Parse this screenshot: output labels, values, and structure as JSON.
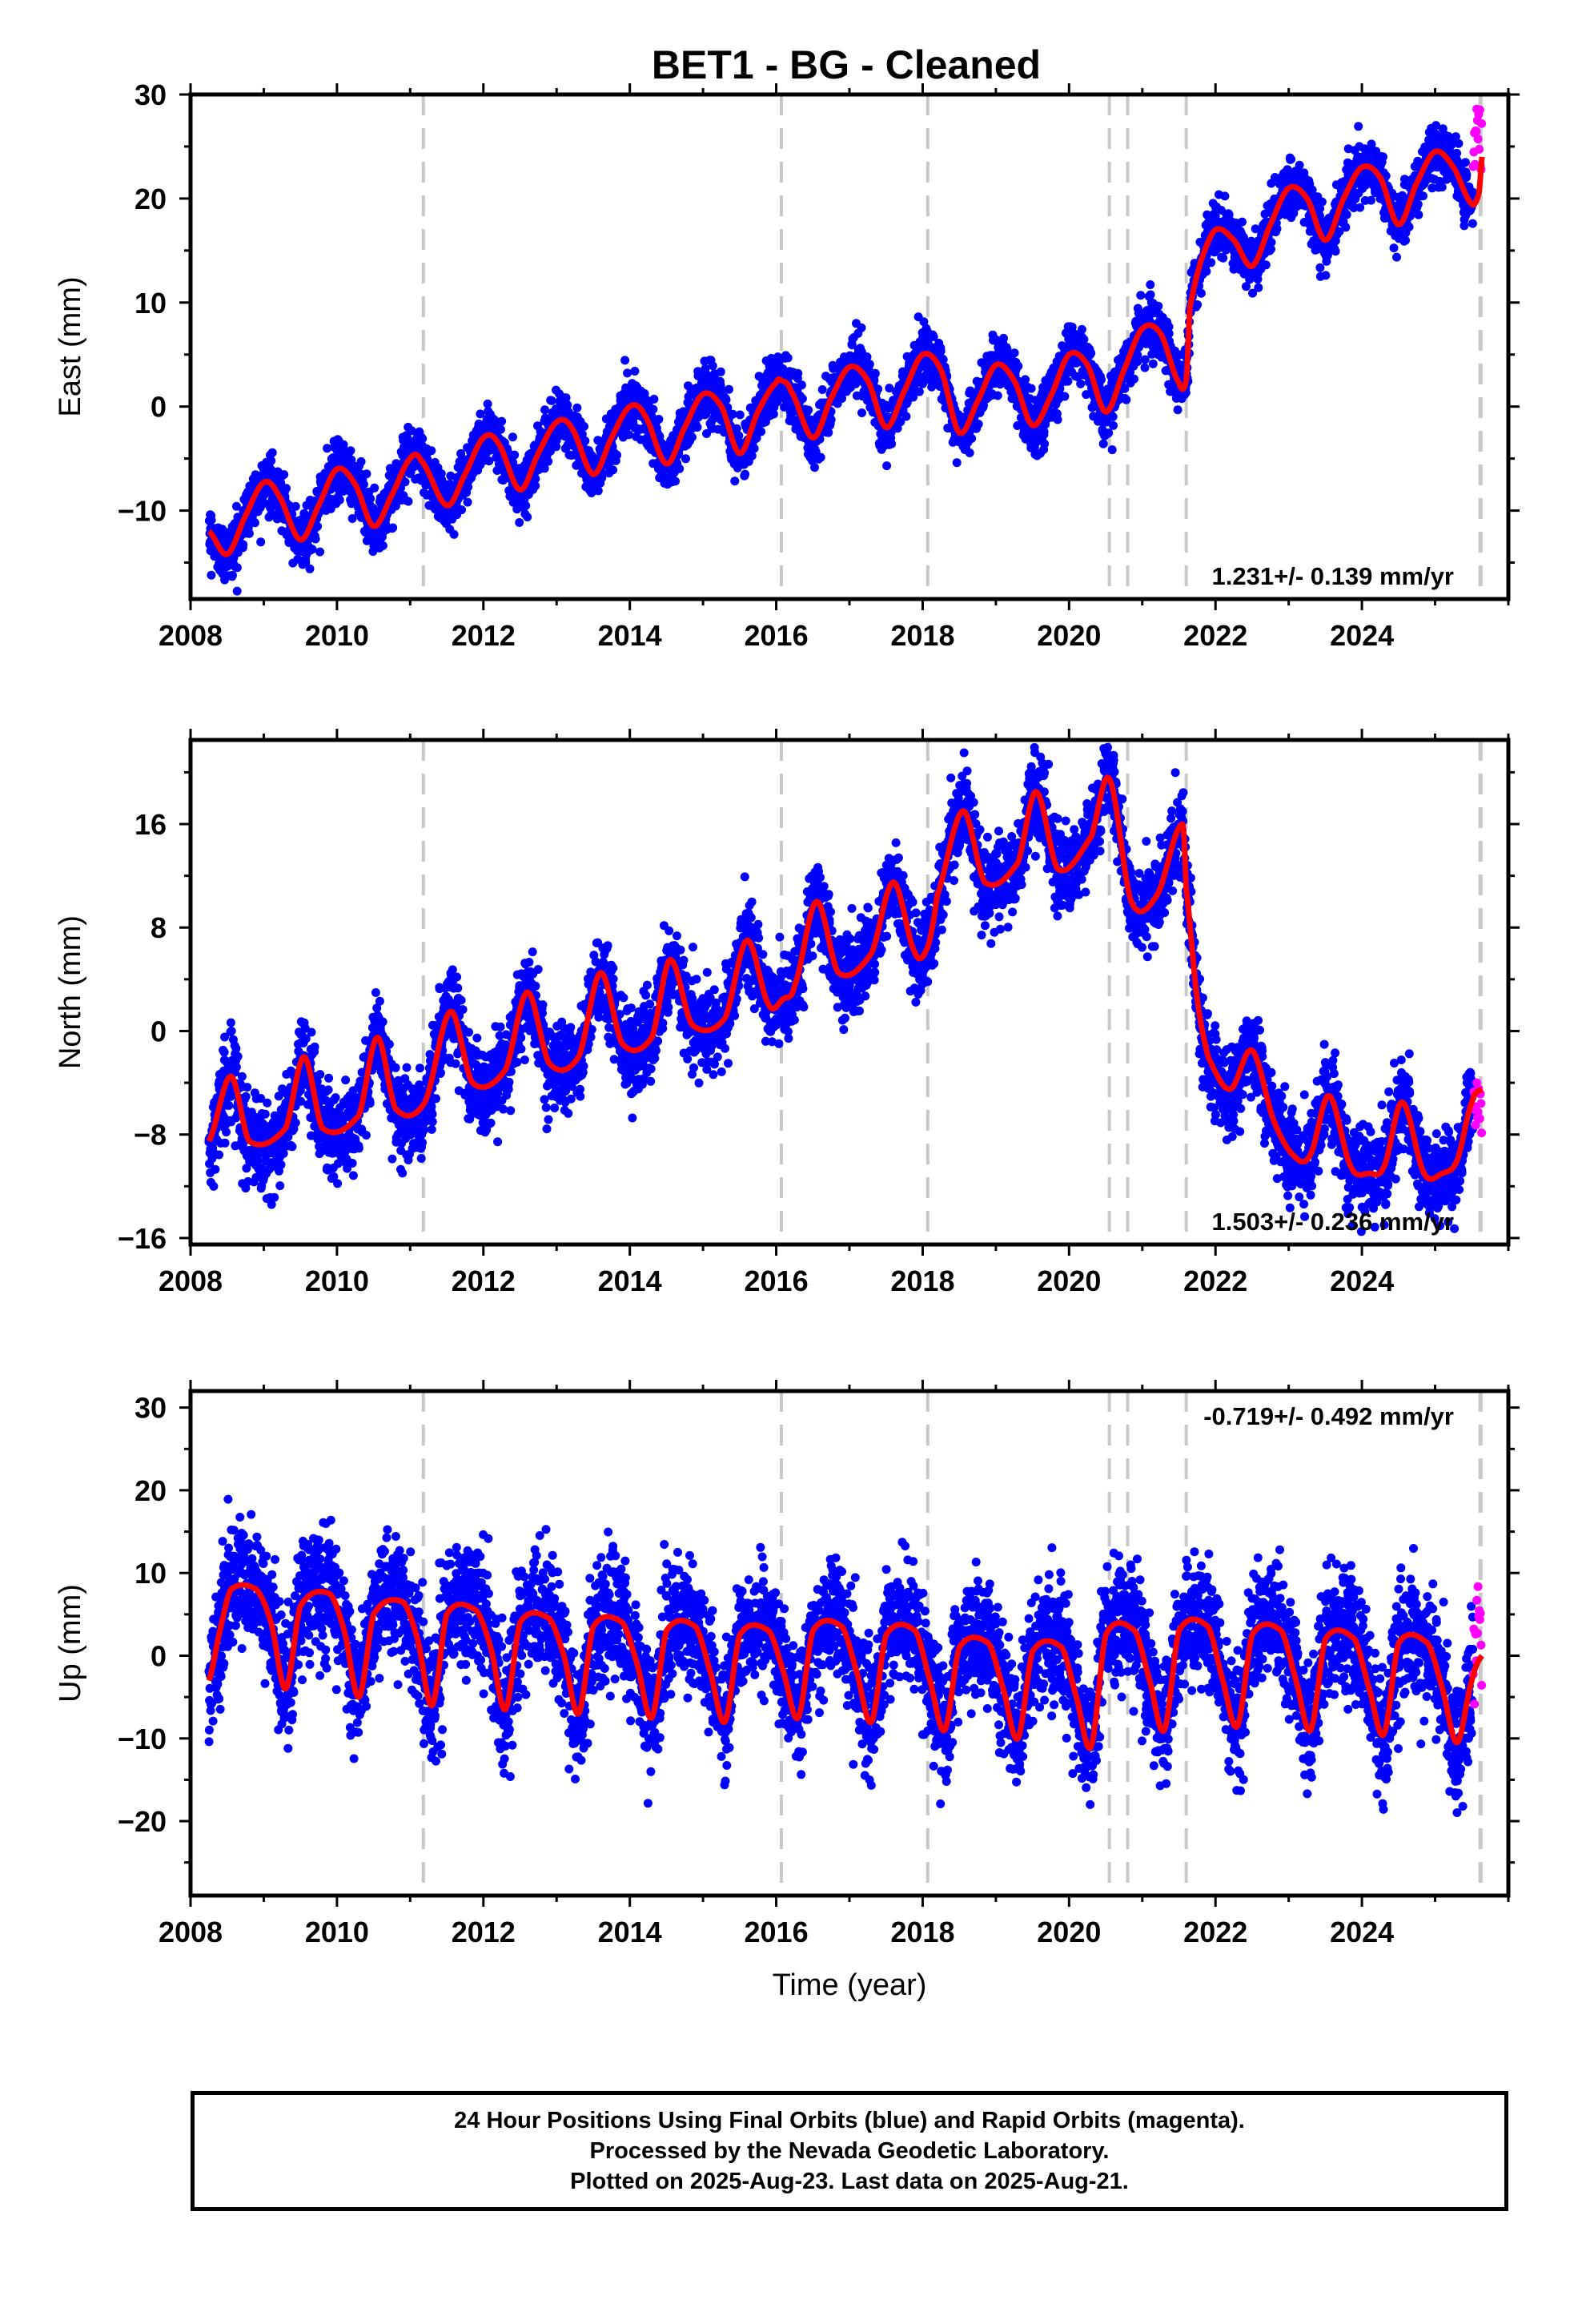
{
  "chart_data": [
    {
      "type": "scatter",
      "title": "BET1  - BG - Cleaned",
      "ylabel": "East (mm)",
      "xlabel": "",
      "xlim": [
        2008.0,
        2026.0
      ],
      "ylim": [
        -18.5,
        30
      ],
      "xticks": [
        2008,
        2010,
        2012,
        2014,
        2016,
        2018,
        2020,
        2022,
        2024
      ],
      "yticks": [
        -10,
        0,
        10,
        20,
        30
      ],
      "velocity_label": "1.231+/- 0.139 mm/yr",
      "velocity_position": "bottom-right",
      "data_start": 2008.25,
      "data_end": 2025.64,
      "rapid_start": 2025.52,
      "model_knots": [
        [
          2008.25,
          -12
        ],
        [
          2008.5,
          -14.2
        ],
        [
          2008.75,
          -10.5
        ],
        [
          2009.0,
          -7.3
        ],
        [
          2009.2,
          -8.5
        ],
        [
          2009.5,
          -12.8
        ],
        [
          2009.75,
          -9.5
        ],
        [
          2010.0,
          -6.0
        ],
        [
          2010.25,
          -7.5
        ],
        [
          2010.5,
          -11.5
        ],
        [
          2010.75,
          -8.5
        ],
        [
          2011.0,
          -5.0
        ],
        [
          2011.15,
          -5.2
        ],
        [
          2011.5,
          -9.5
        ],
        [
          2011.75,
          -6.5
        ],
        [
          2012.0,
          -3.0
        ],
        [
          2012.2,
          -3.5
        ],
        [
          2012.5,
          -8.0
        ],
        [
          2012.75,
          -4.5
        ],
        [
          2013.0,
          -1.5
        ],
        [
          2013.2,
          -2.0
        ],
        [
          2013.5,
          -6.5
        ],
        [
          2013.75,
          -3.0
        ],
        [
          2014.0,
          0.0
        ],
        [
          2014.2,
          -0.8
        ],
        [
          2014.5,
          -5.5
        ],
        [
          2014.75,
          -2.0
        ],
        [
          2015.0,
          1.2
        ],
        [
          2015.25,
          0.0
        ],
        [
          2015.5,
          -4.5
        ],
        [
          2015.75,
          -0.5
        ],
        [
          2016.0,
          2.3
        ],
        [
          2016.07,
          2.5
        ],
        [
          2016.2,
          1.5
        ],
        [
          2016.5,
          -3.0
        ],
        [
          2016.75,
          0.8
        ],
        [
          2017.0,
          3.8
        ],
        [
          2017.25,
          2.5
        ],
        [
          2017.5,
          -2.0
        ],
        [
          2017.75,
          1.5
        ],
        [
          2018.0,
          5.0
        ],
        [
          2018.25,
          3.5
        ],
        [
          2018.5,
          -2.5
        ],
        [
          2018.75,
          0.5
        ],
        [
          2019.0,
          4.0
        ],
        [
          2019.25,
          2.5
        ],
        [
          2019.5,
          -1.8
        ],
        [
          2019.75,
          1.0
        ],
        [
          2020.0,
          5.0
        ],
        [
          2020.25,
          4.0
        ],
        [
          2020.5,
          -0.5
        ],
        [
          2020.75,
          3.5
        ],
        [
          2021.0,
          7.5
        ],
        [
          2021.25,
          7.0
        ],
        [
          2021.5,
          2.3
        ],
        [
          2021.6,
          2.5
        ],
        [
          2021.65,
          9.5
        ],
        [
          2021.8,
          14.0
        ],
        [
          2022.0,
          17.0
        ],
        [
          2022.25,
          16.0
        ],
        [
          2022.5,
          13.5
        ],
        [
          2022.75,
          17.5
        ],
        [
          2023.0,
          21.0
        ],
        [
          2023.25,
          20.0
        ],
        [
          2023.5,
          16.0
        ],
        [
          2023.75,
          20.0
        ],
        [
          2024.0,
          23.0
        ],
        [
          2024.25,
          22.0
        ],
        [
          2024.5,
          17.5
        ],
        [
          2024.75,
          21.5
        ],
        [
          2025.0,
          24.5
        ],
        [
          2025.25,
          23.0
        ],
        [
          2025.5,
          19.5
        ],
        [
          2025.6,
          20.5
        ],
        [
          2025.64,
          24.0
        ]
      ],
      "scatter_sd": 1.3,
      "rapid_range": [
        22,
        29.5
      ]
    },
    {
      "type": "scatter",
      "ylabel": "North (mm)",
      "xlabel": "",
      "xlim": [
        2008.0,
        2026.0
      ],
      "ylim": [
        -16.5,
        22.5
      ],
      "xticks": [
        2008,
        2010,
        2012,
        2014,
        2016,
        2018,
        2020,
        2022,
        2024
      ],
      "yticks": [
        -16,
        -8,
        0,
        8,
        16
      ],
      "velocity_label": "1.503+/- 0.236 mm/yr",
      "velocity_position": "bottom-right",
      "data_start": 2008.25,
      "data_end": 2025.64,
      "rapid_start": 2025.52,
      "model_knots": [
        [
          2008.25,
          -8.5
        ],
        [
          2008.55,
          -3.5
        ],
        [
          2008.8,
          -8.5
        ],
        [
          2009.3,
          -7.5
        ],
        [
          2009.55,
          -2.0
        ],
        [
          2009.8,
          -7.5
        ],
        [
          2010.3,
          -6.5
        ],
        [
          2010.55,
          -0.5
        ],
        [
          2010.8,
          -6.0
        ],
        [
          2011.2,
          -5.5
        ],
        [
          2011.55,
          1.5
        ],
        [
          2011.85,
          -4.0
        ],
        [
          2012.3,
          -3.0
        ],
        [
          2012.6,
          3.0
        ],
        [
          2012.9,
          -2.5
        ],
        [
          2013.3,
          -2.0
        ],
        [
          2013.6,
          4.5
        ],
        [
          2013.9,
          -1.0
        ],
        [
          2014.3,
          -0.5
        ],
        [
          2014.55,
          5.5
        ],
        [
          2014.85,
          0.5
        ],
        [
          2015.3,
          1.0
        ],
        [
          2015.6,
          7.0
        ],
        [
          2015.9,
          2.0
        ],
        [
          2016.1,
          2.5
        ],
        [
          2016.25,
          3.5
        ],
        [
          2016.55,
          10.0
        ],
        [
          2016.85,
          4.5
        ],
        [
          2017.3,
          6.0
        ],
        [
          2017.6,
          11.5
        ],
        [
          2017.9,
          6.0
        ],
        [
          2018.07,
          6.5
        ],
        [
          2018.2,
          10.5
        ],
        [
          2018.55,
          17.0
        ],
        [
          2018.85,
          11.5
        ],
        [
          2019.3,
          13.0
        ],
        [
          2019.55,
          18.5
        ],
        [
          2019.85,
          12.5
        ],
        [
          2020.3,
          15.0
        ],
        [
          2020.55,
          19.5
        ],
        [
          2020.85,
          10.0
        ],
        [
          2021.2,
          10.5
        ],
        [
          2021.55,
          16.0
        ],
        [
          2021.6,
          11.0
        ],
        [
          2021.75,
          2.5
        ],
        [
          2021.9,
          -2.0
        ],
        [
          2022.2,
          -4.5
        ],
        [
          2022.5,
          -1.5
        ],
        [
          2022.8,
          -7.0
        ],
        [
          2023.1,
          -9.8
        ],
        [
          2023.3,
          -9.5
        ],
        [
          2023.55,
          -5.0
        ],
        [
          2023.85,
          -10.5
        ],
        [
          2024.1,
          -11.0
        ],
        [
          2024.3,
          -10.5
        ],
        [
          2024.55,
          -5.5
        ],
        [
          2024.85,
          -11.0
        ],
        [
          2025.1,
          -11.0
        ],
        [
          2025.3,
          -10.0
        ],
        [
          2025.5,
          -5.5
        ],
        [
          2025.64,
          -4.5
        ]
      ],
      "scatter_sd": 1.6,
      "rapid_range": [
        -8,
        -3
      ]
    },
    {
      "type": "scatter",
      "ylabel": "Up (mm)",
      "xlabel": "Time (year)",
      "xlim": [
        2008.0,
        2026.0
      ],
      "ylim": [
        -29,
        32
      ],
      "xticks": [
        2008,
        2010,
        2012,
        2014,
        2016,
        2018,
        2020,
        2022,
        2024
      ],
      "yticks": [
        -20,
        -10,
        0,
        10,
        20,
        30
      ],
      "velocity_label": "-0.719+/- 0.492 mm/yr",
      "velocity_position": "top-right",
      "data_start": 2008.25,
      "data_end": 2025.64,
      "rapid_start": 2025.52,
      "model_knots": [
        [
          2008.25,
          -3
        ],
        [
          2008.4,
          3
        ],
        [
          2008.55,
          8
        ],
        [
          2008.9,
          8
        ],
        [
          2009.1,
          4
        ],
        [
          2009.3,
          -4
        ],
        [
          2009.5,
          6
        ],
        [
          2009.9,
          7.5
        ],
        [
          2010.1,
          3
        ],
        [
          2010.3,
          -5
        ],
        [
          2010.5,
          5
        ],
        [
          2010.9,
          6.5
        ],
        [
          2011.1,
          2
        ],
        [
          2011.3,
          -6
        ],
        [
          2011.5,
          5
        ],
        [
          2011.9,
          5.5
        ],
        [
          2012.1,
          1
        ],
        [
          2012.3,
          -6.5
        ],
        [
          2012.5,
          4
        ],
        [
          2012.9,
          4.5
        ],
        [
          2013.1,
          0
        ],
        [
          2013.3,
          -7
        ],
        [
          2013.5,
          3.5
        ],
        [
          2013.9,
          4
        ],
        [
          2014.1,
          -1
        ],
        [
          2014.3,
          -7.5
        ],
        [
          2014.5,
          3
        ],
        [
          2014.9,
          3.5
        ],
        [
          2015.1,
          -2
        ],
        [
          2015.3,
          -8
        ],
        [
          2015.5,
          2.5
        ],
        [
          2015.9,
          3
        ],
        [
          2016.1,
          -2
        ],
        [
          2016.3,
          -7.5
        ],
        [
          2016.5,
          3
        ],
        [
          2016.9,
          3.5
        ],
        [
          2017.1,
          -2
        ],
        [
          2017.3,
          -8
        ],
        [
          2017.5,
          2.5
        ],
        [
          2017.9,
          3
        ],
        [
          2018.1,
          -3
        ],
        [
          2018.3,
          -9
        ],
        [
          2018.5,
          1
        ],
        [
          2018.9,
          1.5
        ],
        [
          2019.1,
          -4
        ],
        [
          2019.3,
          -10
        ],
        [
          2019.5,
          0.5
        ],
        [
          2019.9,
          1
        ],
        [
          2020.1,
          -5
        ],
        [
          2020.3,
          -11
        ],
        [
          2020.5,
          2.5
        ],
        [
          2020.9,
          3
        ],
        [
          2021.1,
          -3
        ],
        [
          2021.3,
          -9
        ],
        [
          2021.5,
          3
        ],
        [
          2021.9,
          3.5
        ],
        [
          2022.1,
          -3
        ],
        [
          2022.3,
          -8.5
        ],
        [
          2022.5,
          2.5
        ],
        [
          2022.9,
          3
        ],
        [
          2023.1,
          -3
        ],
        [
          2023.3,
          -9
        ],
        [
          2023.5,
          2
        ],
        [
          2023.9,
          2
        ],
        [
          2024.1,
          -4
        ],
        [
          2024.3,
          -9.5
        ],
        [
          2024.5,
          1.5
        ],
        [
          2024.9,
          1.5
        ],
        [
          2025.1,
          -4
        ],
        [
          2025.3,
          -10.5
        ],
        [
          2025.5,
          -3
        ],
        [
          2025.64,
          0
        ]
      ],
      "scatter_sd": 3.6,
      "rapid_range": [
        -6,
        10
      ]
    }
  ],
  "equipment_change_epochs": [
    2011.18,
    2016.07,
    2018.07,
    2020.55,
    2020.8,
    2021.6,
    2025.62
  ],
  "colors": {
    "final_orbits": "#0000ff",
    "rapid_orbits": "#ff00ff",
    "model": "#ff0000",
    "equipment_lines": "#c8c8c8",
    "frame": "#000000"
  },
  "footer": {
    "line1": "24 Hour Positions Using Final Orbits (blue) and Rapid Orbits (magenta).",
    "line2": "Processed by the Nevada Geodetic Laboratory.",
    "line3": "Plotted on 2025-Aug-23. Last data on 2025-Aug-21."
  }
}
